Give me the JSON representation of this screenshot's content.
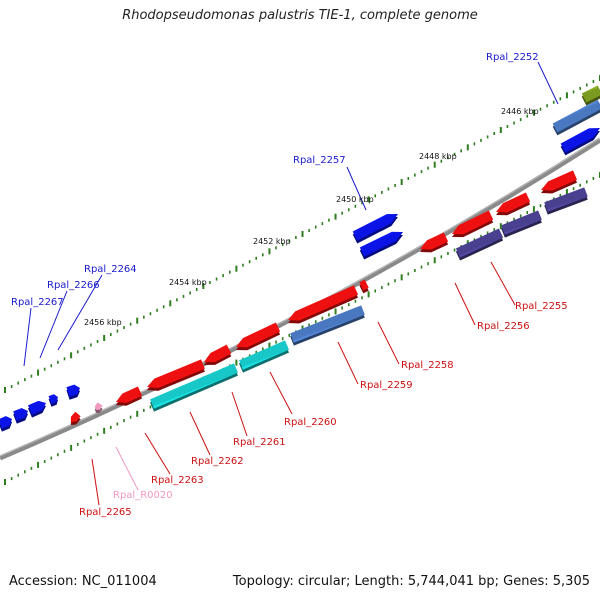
{
  "title": "Rhodopseudomonas palustris TIE-1, complete genome",
  "footer": {
    "accession": "Accession: NC_011004",
    "topology": "Topology: circular; Length: 5,744,041 bp; Genes: 5,305"
  },
  "colors": {
    "backbone": "#888888",
    "dotted_track": "#2e7d1e",
    "label_blue": "#1a1acc",
    "label_red": "#cc1111",
    "label_pink": "#f098c0",
    "gene_red": "#ee1010",
    "gene_blue": "#0a14e6",
    "gene_steel": "#4a78c0",
    "gene_cyan": "#18c8c8",
    "gene_purple": "#4a4090",
    "gene_olive": "#7a9a20",
    "gene_pink": "#f098c0"
  },
  "kbp_marks": [
    "2446 kbp",
    "2448 kbp",
    "2450 kbp",
    "2452 kbp",
    "2454 kbp",
    "2456 kbp"
  ],
  "gene_labels": [
    {
      "text": "Rpal_2252",
      "color": "blue"
    },
    {
      "text": "Rpal_2257",
      "color": "blue"
    },
    {
      "text": "Rpal_2264",
      "color": "blue"
    },
    {
      "text": "Rpal_2266",
      "color": "blue"
    },
    {
      "text": "Rpal_2267",
      "color": "blue"
    },
    {
      "text": "Rpal_2255",
      "color": "red"
    },
    {
      "text": "Rpal_2256",
      "color": "red"
    },
    {
      "text": "Rpal_2258",
      "color": "red"
    },
    {
      "text": "Rpal_2259",
      "color": "red"
    },
    {
      "text": "Rpal_2260",
      "color": "red"
    },
    {
      "text": "Rpal_2261",
      "color": "red"
    },
    {
      "text": "Rpal_2262",
      "color": "red"
    },
    {
      "text": "Rpal_2263",
      "color": "red"
    },
    {
      "text": "Rpal_R0020",
      "color": "pink"
    },
    {
      "text": "Rpal_2265",
      "color": "red"
    }
  ]
}
